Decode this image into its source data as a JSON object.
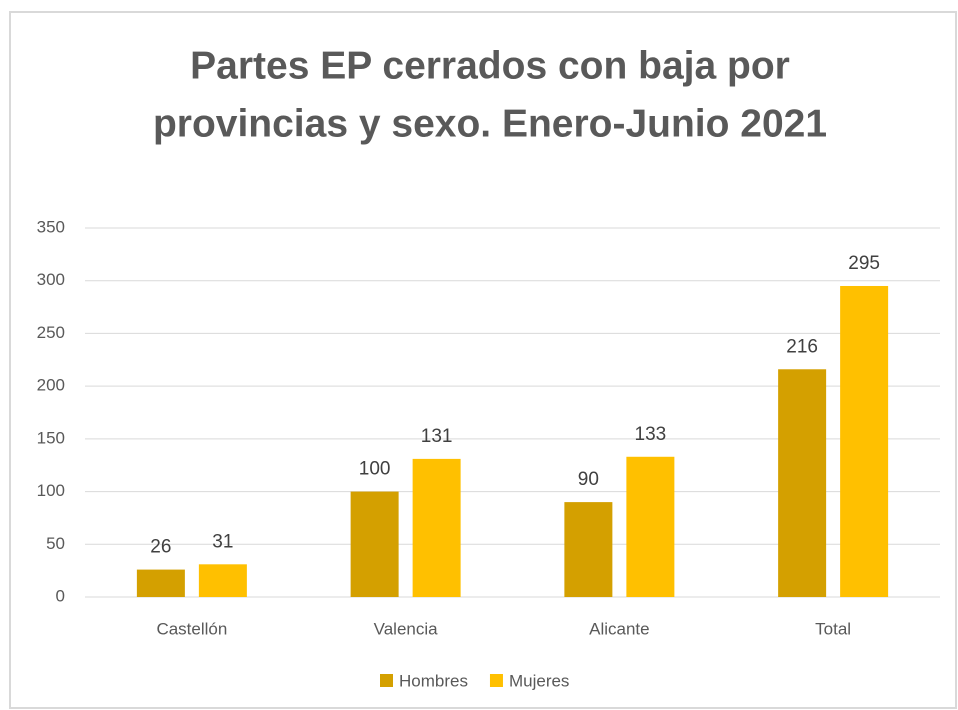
{
  "chart_data": {
    "type": "bar",
    "title": [
      "Partes EP cerrados con baja por",
      "provincias y sexo. Enero-Junio 2021"
    ],
    "categories": [
      "Castellón",
      "Valencia",
      "Alicante",
      "Total"
    ],
    "series": [
      {
        "name": "Hombres",
        "color": "#d4a000",
        "values": [
          26,
          100,
          90,
          216
        ]
      },
      {
        "name": "Mujeres",
        "color": "#ffc000",
        "values": [
          31,
          131,
          133,
          295
        ]
      }
    ],
    "ylim": [
      0,
      350
    ],
    "yticks": [
      0,
      50,
      100,
      150,
      200,
      250,
      300,
      350
    ],
    "grid": true,
    "legend": "bottom"
  }
}
